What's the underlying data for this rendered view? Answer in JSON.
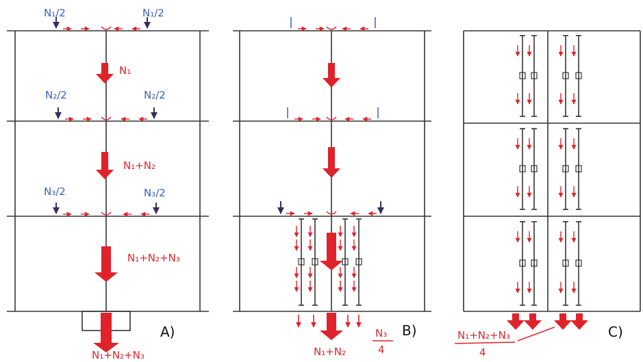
{
  "panels": [
    {
      "label": "A)",
      "loads": [
        "N₁/2",
        "N₁/2",
        "N₂/2",
        "N₂/2",
        "N₃/2",
        "N₃/2"
      ],
      "forces": [
        "N₁",
        "N₁+N₂",
        "N₁+N₂+N₃"
      ],
      "base": "N₁+N₂+N₃"
    },
    {
      "label": "B)",
      "base": "N₁+N₂",
      "fraction": {
        "numerator": "N₃",
        "denominator": "4"
      }
    },
    {
      "label": "C)",
      "fraction": {
        "numerator": "N₁+N₂+N₃",
        "denominator": "4"
      }
    }
  ]
}
